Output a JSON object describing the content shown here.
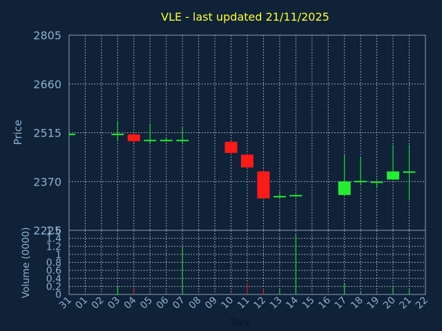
{
  "colors": {
    "background": "#0f2238",
    "title": "#ffff33",
    "axis_text": "#8fb0d0",
    "grid": "#9aa8b8",
    "frame": "#8fa0b4",
    "up": "#22ee33",
    "down": "#ff1a1a"
  },
  "chart_data": [
    {
      "type": "candlestick",
      "title": "VLE - last updated 21/11/2025",
      "xlabel": "",
      "ylabel": "Price",
      "ylim": [
        2225,
        2805
      ],
      "yticks": [
        2805,
        2660,
        2515,
        2370,
        2225
      ],
      "grid": true,
      "x_tick_labels": [
        "31",
        "01",
        "02",
        "03",
        "04",
        "05",
        "06",
        "07",
        "08",
        "09",
        "10",
        "11",
        "12",
        "13",
        "14",
        "15",
        "16",
        "17",
        "18",
        "19",
        "20",
        "21",
        "22"
      ],
      "candles": [
        {
          "day": "31",
          "open": 2510,
          "close": 2510,
          "high": 2514,
          "low": 2506,
          "dir": "up"
        },
        {
          "day": "03",
          "open": 2510,
          "close": 2510,
          "high": 2550,
          "low": 2490,
          "dir": "up"
        },
        {
          "day": "04",
          "open": 2510,
          "close": 2490,
          "high": 2515,
          "low": 2485,
          "dir": "down"
        },
        {
          "day": "05",
          "open": 2492,
          "close": 2492,
          "high": 2540,
          "low": 2485,
          "dir": "up"
        },
        {
          "day": "06",
          "open": 2492,
          "close": 2492,
          "high": 2500,
          "low": 2488,
          "dir": "up"
        },
        {
          "day": "07",
          "open": 2492,
          "close": 2492,
          "high": 2530,
          "low": 2485,
          "dir": "up"
        },
        {
          "day": "10",
          "open": 2488,
          "close": 2455,
          "high": 2490,
          "low": 2450,
          "dir": "down"
        },
        {
          "day": "11",
          "open": 2450,
          "close": 2412,
          "high": 2452,
          "low": 2410,
          "dir": "down"
        },
        {
          "day": "12",
          "open": 2400,
          "close": 2320,
          "high": 2402,
          "low": 2318,
          "dir": "down"
        },
        {
          "day": "13",
          "open": 2325,
          "close": 2325,
          "high": 2340,
          "low": 2320,
          "dir": "up"
        },
        {
          "day": "14",
          "open": 2328,
          "close": 2328,
          "high": 2332,
          "low": 2324,
          "dir": "up"
        },
        {
          "day": "17",
          "open": 2330,
          "close": 2370,
          "high": 2450,
          "low": 2330,
          "dir": "up"
        },
        {
          "day": "18",
          "open": 2370,
          "close": 2370,
          "high": 2443,
          "low": 2360,
          "dir": "up"
        },
        {
          "day": "19",
          "open": 2368,
          "close": 2368,
          "high": 2372,
          "low": 2350,
          "dir": "up"
        },
        {
          "day": "20",
          "open": 2376,
          "close": 2400,
          "high": 2480,
          "low": 2375,
          "dir": "up"
        },
        {
          "day": "21",
          "open": 2398,
          "close": 2398,
          "high": 2480,
          "low": 2315,
          "dir": "up"
        }
      ]
    },
    {
      "type": "bar",
      "xlabel": "Day",
      "ylabel": "Volume (0000)",
      "ylim": [
        0,
        1.6
      ],
      "yticks": [
        0,
        0.2,
        0.4,
        0.6,
        0.8,
        1,
        1.2,
        1.4,
        1.6
      ],
      "x_tick_labels": [
        "31",
        "01",
        "02",
        "03",
        "04",
        "05",
        "06",
        "07",
        "08",
        "09",
        "10",
        "11",
        "12",
        "13",
        "14",
        "15",
        "16",
        "17",
        "18",
        "19",
        "20",
        "21",
        "22"
      ],
      "bars": [
        {
          "day": "31",
          "value": 0.02,
          "dir": "up"
        },
        {
          "day": "03",
          "value": 0.2,
          "dir": "up"
        },
        {
          "day": "04",
          "value": 0.18,
          "dir": "down"
        },
        {
          "day": "05",
          "value": 0.03,
          "dir": "up"
        },
        {
          "day": "06",
          "value": 0.03,
          "dir": "up"
        },
        {
          "day": "07",
          "value": 1.18,
          "dir": "up"
        },
        {
          "day": "10",
          "value": 0.04,
          "dir": "down"
        },
        {
          "day": "11",
          "value": 0.3,
          "dir": "down"
        },
        {
          "day": "12",
          "value": 0.15,
          "dir": "down"
        },
        {
          "day": "13",
          "value": 0.15,
          "dir": "up"
        },
        {
          "day": "14",
          "value": 1.5,
          "dir": "up"
        },
        {
          "day": "17",
          "value": 0.28,
          "dir": "up"
        },
        {
          "day": "18",
          "value": 0.05,
          "dir": "up"
        },
        {
          "day": "19",
          "value": 0.03,
          "dir": "up"
        },
        {
          "day": "20",
          "value": 0.2,
          "dir": "up"
        },
        {
          "day": "21",
          "value": 0.15,
          "dir": "up"
        }
      ]
    }
  ]
}
